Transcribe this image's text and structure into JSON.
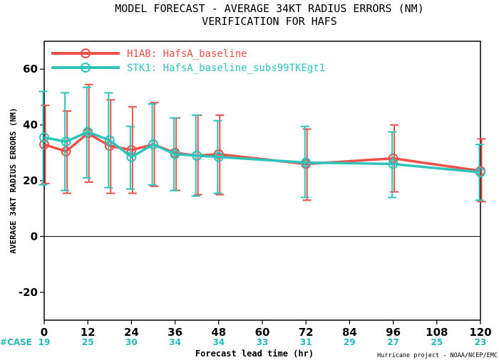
{
  "chart_data": {
    "type": "line",
    "title": "MODEL FORECAST - AVERAGE 34KT RADIUS ERRORS (NM)",
    "subtitle": "VERIFICATION FOR HAFS",
    "xlabel": "Forecast lead time (hr)",
    "ylabel": "AVERAGE 34KT RADIUS ERRORS (NM)",
    "xlim": [
      0,
      120
    ],
    "ylim": [
      -30,
      70
    ],
    "xticks": [
      0,
      12,
      24,
      36,
      48,
      60,
      72,
      84,
      96,
      108,
      120
    ],
    "yticks": [
      -20,
      0,
      20,
      40,
      60
    ],
    "zero_line": true,
    "legend_position": "top-left",
    "series": [
      {
        "name": "H1AB: HafsA_baseline",
        "color": "#f0504a",
        "x": [
          0,
          6,
          12,
          18,
          24,
          30,
          36,
          42,
          48,
          72,
          96,
          120
        ],
        "y": [
          33,
          30.5,
          37,
          32.5,
          31,
          33,
          30,
          29,
          29.5,
          26,
          28,
          23.5
        ],
        "err_low": [
          19,
          15.5,
          19.5,
          15.5,
          15.5,
          18,
          16.5,
          15,
          15,
          13,
          16,
          12.5
        ],
        "err_high": [
          47,
          45,
          54.5,
          49,
          46.5,
          48,
          42.5,
          43.5,
          43.5,
          38.5,
          40,
          35
        ]
      },
      {
        "name": "STK1: HafsA_baseline_subs99TKEgt1",
        "color": "#2ec4bc",
        "x": [
          0,
          6,
          12,
          18,
          24,
          30,
          36,
          42,
          48,
          72,
          96,
          120
        ],
        "y": [
          35.5,
          34,
          37.5,
          34.5,
          28.5,
          33,
          29.5,
          29,
          28.5,
          26.5,
          26,
          23
        ],
        "err_low": [
          18.5,
          16.5,
          21,
          17.5,
          17,
          18.5,
          16.5,
          14.5,
          15.5,
          14,
          14,
          13
        ],
        "err_high": [
          52,
          51.5,
          53.5,
          51.5,
          39.5,
          47.5,
          42.5,
          43.5,
          41.5,
          39.5,
          37.5,
          33
        ]
      }
    ],
    "case_label": "#CASE",
    "cases": [
      {
        "x": 0,
        "n": "19"
      },
      {
        "x": 12,
        "n": "25"
      },
      {
        "x": 24,
        "n": "30"
      },
      {
        "x": 36,
        "n": "34"
      },
      {
        "x": 48,
        "n": "34"
      },
      {
        "x": 60,
        "n": "33"
      },
      {
        "x": 72,
        "n": "31"
      },
      {
        "x": 84,
        "n": "29"
      },
      {
        "x": 96,
        "n": "27"
      },
      {
        "x": 108,
        "n": "25"
      },
      {
        "x": 120,
        "n": "23"
      }
    ],
    "credit": "Hurricane project - NOAA/NCEP/EMC"
  }
}
